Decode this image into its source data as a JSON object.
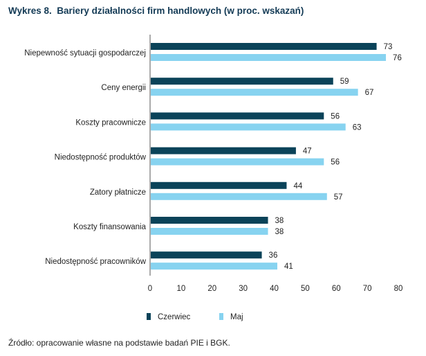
{
  "chart_data": {
    "type": "bar",
    "orientation": "horizontal",
    "title": "Wykres 8.  Bariery działalności firm handlowych (w proc. wskazań)",
    "categories": [
      "Niepewność sytuacji gospodarczej",
      "Ceny energii",
      "Koszty pracownicze",
      "Niedostępność produktów",
      "Zatory płatnicze",
      "Koszty finansowania",
      "Niedostępność pracowników"
    ],
    "series": [
      {
        "name": "Czerwiec",
        "color": "#0b4359",
        "values": [
          73,
          59,
          56,
          47,
          44,
          38,
          36
        ]
      },
      {
        "name": "Maj",
        "color": "#87d3f0",
        "values": [
          76,
          67,
          63,
          56,
          57,
          38,
          41
        ]
      }
    ],
    "xlim": [
      0,
      80
    ],
    "xticks": [
      0,
      10,
      20,
      30,
      40,
      50,
      60,
      70,
      80
    ],
    "legend": "bottom",
    "grid": false
  },
  "source": "Źródło: opracowanie własne na podstawie badań PIE i BGK."
}
